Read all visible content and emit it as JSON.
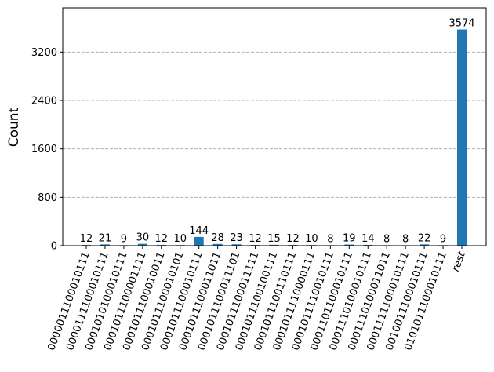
{
  "chart_data": {
    "type": "bar",
    "title": "",
    "xlabel": "",
    "ylabel": "Count",
    "ylim": [
      0,
      3931
    ],
    "yticks": [
      0,
      800,
      1600,
      2400,
      3200
    ],
    "grid": "y-dashed",
    "bar_color": "#1f77b4",
    "categories": [
      "0000011100010111",
      "0000111100010111",
      "0001010100010111",
      "0001011100001111",
      "0001011100010011",
      "0001011100010101",
      "0001011100010111",
      "0001011100011011",
      "0001011100011101",
      "0001011100011111",
      "0001011100100111",
      "0001011100110111",
      "0001011110000111",
      "0001011110010111",
      "0001101100010111",
      "0001110100010111",
      "0001110100011011",
      "0001111100010111",
      "0010011100010111",
      "0101011100010111",
      "rest"
    ],
    "values": [
      12,
      21,
      9,
      30,
      12,
      10,
      144,
      28,
      23,
      12,
      15,
      12,
      10,
      8,
      19,
      14,
      8,
      8,
      22,
      9,
      3574
    ]
  }
}
